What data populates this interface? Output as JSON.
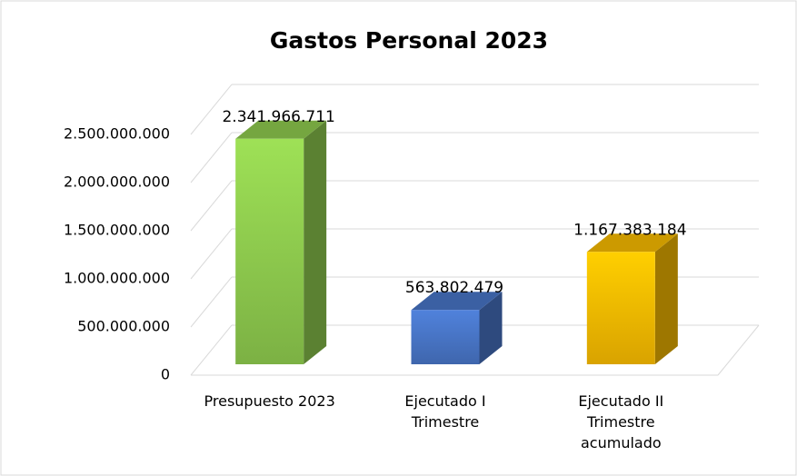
{
  "chart_data": {
    "type": "bar3d",
    "title": "Gastos Personal 2023",
    "categories": [
      "Presupuesto 2023",
      "Ejecutado I Trimestre",
      "Ejecutado II Trimestre acumulado"
    ],
    "values": [
      2341966711,
      563802479,
      1167383184
    ],
    "value_labels": [
      "2.341.966.711",
      "563.802.479",
      "1.167.383.184"
    ],
    "colors": [
      "#92d050",
      "#4a78cc",
      "#ffc000"
    ],
    "ylim": [
      0,
      2500000000
    ],
    "yticks": [
      0,
      {
        "value": 500000000,
        "label": "500.000.000"
      },
      {
        "value": 1000000000,
        "label": "1.000.000.000"
      },
      {
        "value": 1500000000,
        "label": "1.500.000.000"
      },
      {
        "value": 2000000000,
        "label": "2.000.000.000"
      },
      {
        "value": 2500000000,
        "label": "2.500.000.000"
      }
    ],
    "grid": true
  }
}
